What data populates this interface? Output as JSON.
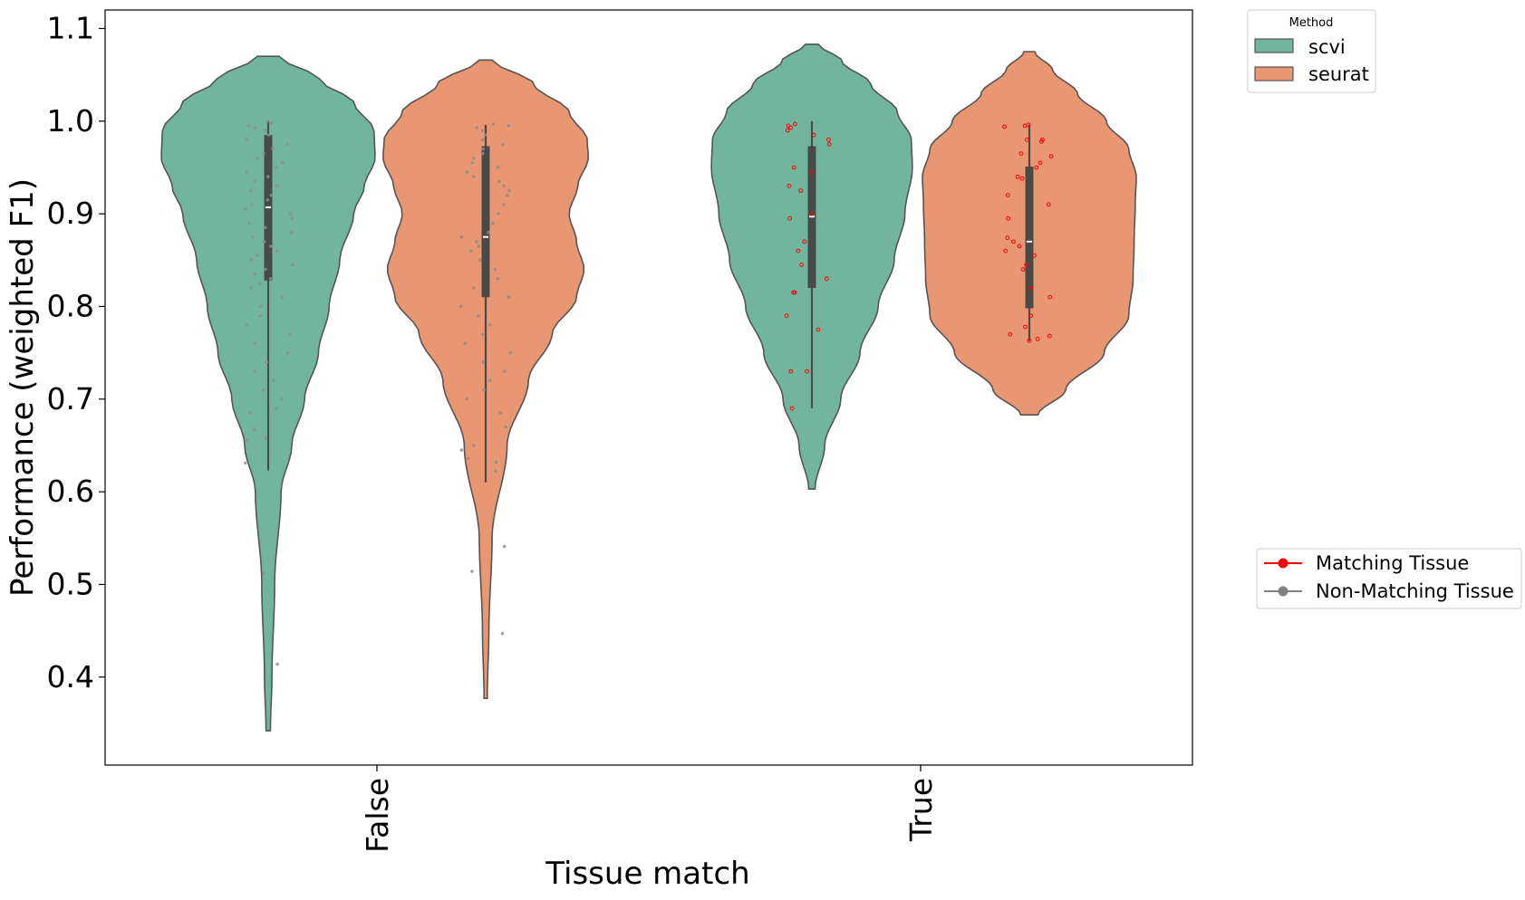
{
  "chart_data": {
    "type": "violin",
    "title": "",
    "xlabel": "Tissue match",
    "ylabel": "Performance (weighted F1)",
    "ylim": [
      0.305,
      1.12
    ],
    "yticks": [
      0.4,
      0.5,
      0.6,
      0.7,
      0.8,
      0.9,
      1.0,
      1.1
    ],
    "yticklabels": [
      "0.4",
      "0.5",
      "0.6",
      "0.7",
      "0.8",
      "0.9",
      "1.0",
      "1.1"
    ],
    "categories": [
      "False",
      "True"
    ],
    "grid": false,
    "series": [
      {
        "name": "scvi",
        "color": "#72b59f",
        "groups": [
          {
            "category": "False",
            "range": [
              0.342,
              1.07
            ],
            "q1": 0.828,
            "median": 0.907,
            "q3": 0.985,
            "whisker": [
              0.623,
              1.0
            ],
            "density": [
              [
                0.342,
                0.02
              ],
              [
                0.4,
                0.035
              ],
              [
                0.5,
                0.06
              ],
              [
                0.6,
                0.12
              ],
              [
                0.65,
                0.22
              ],
              [
                0.7,
                0.34
              ],
              [
                0.75,
                0.47
              ],
              [
                0.8,
                0.57
              ],
              [
                0.85,
                0.67
              ],
              [
                0.9,
                0.8
              ],
              [
                0.93,
                0.9
              ],
              [
                0.96,
                1.0
              ],
              [
                0.99,
                0.99
              ],
              [
                1.02,
                0.8
              ],
              [
                1.045,
                0.48
              ],
              [
                1.07,
                0.1
              ]
            ]
          },
          {
            "category": "True",
            "range": [
              0.603,
              1.083
            ],
            "q1": 0.82,
            "median": 0.897,
            "q3": 0.973,
            "whisker": [
              0.69,
              1.0
            ],
            "density": [
              [
                0.603,
                0.03
              ],
              [
                0.65,
                0.12
              ],
              [
                0.7,
                0.27
              ],
              [
                0.75,
                0.45
              ],
              [
                0.8,
                0.62
              ],
              [
                0.85,
                0.77
              ],
              [
                0.9,
                0.87
              ],
              [
                0.95,
                0.94
              ],
              [
                0.98,
                0.93
              ],
              [
                1.01,
                0.8
              ],
              [
                1.04,
                0.55
              ],
              [
                1.065,
                0.28
              ],
              [
                1.083,
                0.06
              ]
            ]
          }
        ]
      },
      {
        "name": "seurat",
        "color": "#e99672",
        "groups": [
          {
            "category": "False",
            "range": [
              0.377,
              1.066
            ],
            "q1": 0.81,
            "median": 0.875,
            "q3": 0.973,
            "whisker": [
              0.61,
              0.996
            ],
            "density": [
              [
                0.377,
                0.015
              ],
              [
                0.45,
                0.03
              ],
              [
                0.55,
                0.06
              ],
              [
                0.65,
                0.2
              ],
              [
                0.72,
                0.4
              ],
              [
                0.77,
                0.62
              ],
              [
                0.81,
                0.85
              ],
              [
                0.84,
                0.92
              ],
              [
                0.87,
                0.85
              ],
              [
                0.9,
                0.78
              ],
              [
                0.93,
                0.86
              ],
              [
                0.96,
                0.96
              ],
              [
                0.98,
                0.95
              ],
              [
                1.01,
                0.78
              ],
              [
                1.04,
                0.45
              ],
              [
                1.066,
                0.06
              ]
            ]
          },
          {
            "category": "True",
            "range": [
              0.683,
              1.075
            ],
            "q1": 0.798,
            "median": 0.87,
            "q3": 0.951,
            "whisker": [
              0.763,
              0.996
            ],
            "density": [
              [
                0.683,
                0.08
              ],
              [
                0.71,
                0.34
              ],
              [
                0.75,
                0.7
              ],
              [
                0.79,
                0.93
              ],
              [
                0.83,
                0.97
              ],
              [
                0.87,
                0.98
              ],
              [
                0.91,
                0.99
              ],
              [
                0.94,
                1.0
              ],
              [
                0.97,
                0.93
              ],
              [
                1.0,
                0.72
              ],
              [
                1.03,
                0.45
              ],
              [
                1.055,
                0.22
              ],
              [
                1.075,
                0.05
              ]
            ]
          }
        ]
      }
    ],
    "points": {
      "scvi_false": [
        1.0,
        0.998,
        0.995,
        0.993,
        0.99,
        0.985,
        0.98,
        0.975,
        0.97,
        0.965,
        0.96,
        0.955,
        0.95,
        0.945,
        0.94,
        0.935,
        0.93,
        0.925,
        0.92,
        0.915,
        0.91,
        0.905,
        0.9,
        0.895,
        0.89,
        0.885,
        0.88,
        0.875,
        0.87,
        0.865,
        0.86,
        0.855,
        0.85,
        0.845,
        0.84,
        0.835,
        0.83,
        0.825,
        0.82,
        0.81,
        0.8,
        0.79,
        0.78,
        0.77,
        0.76,
        0.75,
        0.74,
        0.73,
        0.72,
        0.71,
        0.7,
        0.69,
        0.685,
        0.667,
        0.658,
        0.656,
        0.631,
        0.512,
        0.414
      ],
      "seurat_false": [
        0.997,
        0.995,
        0.993,
        0.99,
        0.985,
        0.98,
        0.975,
        0.97,
        0.965,
        0.96,
        0.955,
        0.95,
        0.945,
        0.94,
        0.935,
        0.93,
        0.925,
        0.92,
        0.91,
        0.9,
        0.89,
        0.88,
        0.875,
        0.87,
        0.865,
        0.86,
        0.85,
        0.84,
        0.83,
        0.82,
        0.81,
        0.8,
        0.79,
        0.78,
        0.77,
        0.76,
        0.75,
        0.74,
        0.73,
        0.72,
        0.71,
        0.7,
        0.685,
        0.67,
        0.65,
        0.645,
        0.636,
        0.632,
        0.622,
        0.572,
        0.541,
        0.514,
        0.447
      ],
      "scvi_true": [
        0.997,
        0.995,
        0.993,
        0.99,
        0.985,
        0.98,
        0.975,
        0.95,
        0.945,
        0.93,
        0.925,
        0.9,
        0.895,
        0.87,
        0.86,
        0.845,
        0.83,
        0.815,
        0.815,
        0.79,
        0.775,
        0.73,
        0.73,
        0.69
      ],
      "seurat_true": [
        0.996,
        0.995,
        0.994,
        0.98,
        0.98,
        0.978,
        0.965,
        0.962,
        0.955,
        0.95,
        0.94,
        0.938,
        0.92,
        0.91,
        0.895,
        0.874,
        0.87,
        0.865,
        0.86,
        0.855,
        0.845,
        0.84,
        0.82,
        0.81,
        0.79,
        0.778,
        0.77,
        0.768,
        0.765,
        0.763
      ]
    },
    "legend_method": {
      "title": "Method",
      "entries": [
        {
          "label": "scvi",
          "color": "#72b59f"
        },
        {
          "label": "seurat",
          "color": "#e99672"
        }
      ]
    },
    "legend_tissue": {
      "entries": [
        {
          "label": "Matching Tissue",
          "color": "#ff0000"
        },
        {
          "label": "Non-Matching Tissue",
          "color": "#808080"
        }
      ]
    }
  }
}
